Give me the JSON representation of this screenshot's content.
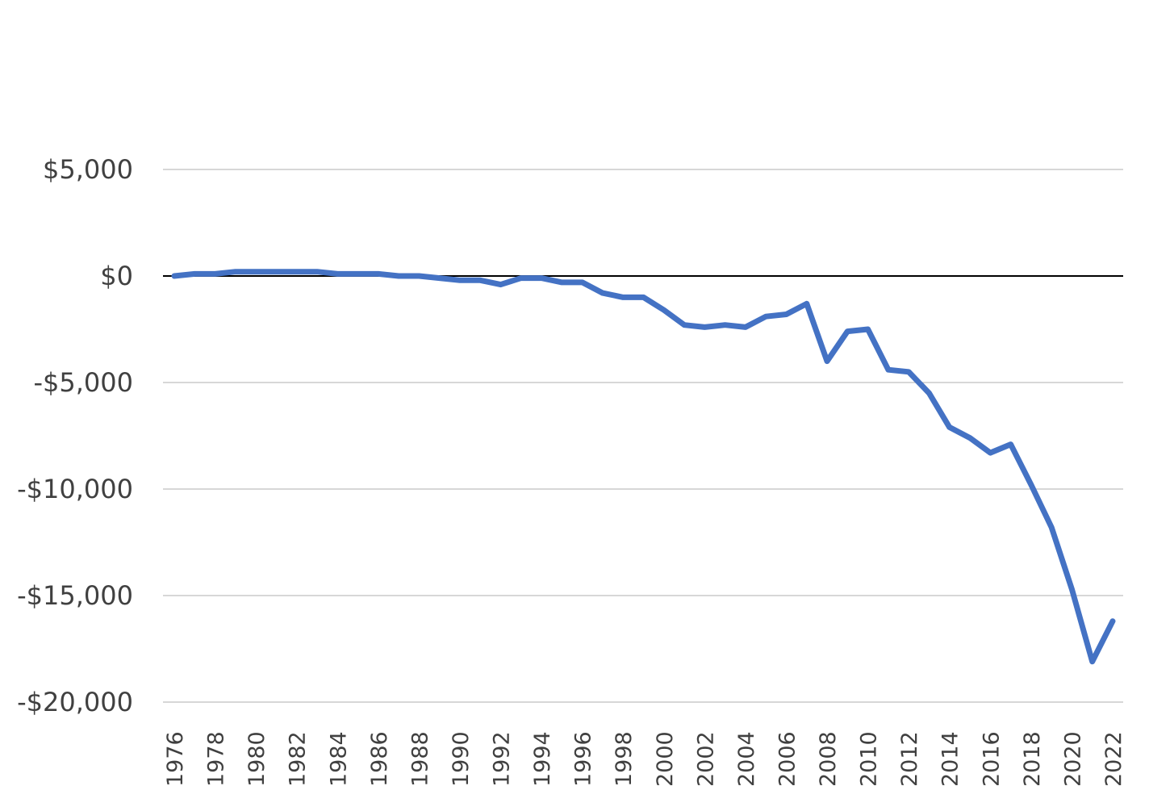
{
  "chart_data": {
    "type": "line",
    "title": "",
    "xlabel": "",
    "ylabel": "",
    "x": [
      1976,
      1977,
      1978,
      1979,
      1980,
      1981,
      1982,
      1983,
      1984,
      1985,
      1986,
      1987,
      1988,
      1989,
      1990,
      1991,
      1992,
      1993,
      1994,
      1995,
      1996,
      1997,
      1998,
      1999,
      2000,
      2001,
      2002,
      2003,
      2004,
      2005,
      2006,
      2007,
      2008,
      2009,
      2010,
      2011,
      2012,
      2013,
      2014,
      2015,
      2016,
      2017,
      2018,
      2019,
      2020,
      2021,
      2022
    ],
    "series": [
      {
        "values": [
          0,
          100,
          100,
          200,
          200,
          200,
          200,
          200,
          100,
          100,
          100,
          0,
          0,
          -100,
          -200,
          -200,
          -400,
          -100,
          -100,
          -300,
          -300,
          -800,
          -1000,
          -1000,
          -1600,
          -2300,
          -2400,
          -2300,
          -2400,
          -1900,
          -1800,
          -1300,
          -4000,
          -2600,
          -2500,
          -4400,
          -4500,
          -5500,
          -7100,
          -7600,
          -8300,
          -7900,
          -9800,
          -11800,
          -14700,
          -18100,
          -16200
        ],
        "color": "#4472C4"
      }
    ],
    "ylim": [
      -20000,
      5000
    ],
    "yticks": [
      5000,
      0,
      -5000,
      -10000,
      -15000,
      -20000
    ],
    "ytick_labels": [
      "$5,000",
      "$0",
      "-$5,000",
      "-$10,000",
      "-$15,000",
      "-$20,000"
    ],
    "xtick_labels": [
      "1976",
      "1978",
      "1980",
      "1982",
      "1984",
      "1986",
      "1988",
      "1990",
      "1992",
      "1994",
      "1996",
      "1998",
      "2000",
      "2002",
      "2004",
      "2006",
      "2008",
      "2010",
      "2012",
      "2014",
      "2016",
      "2018",
      "2020",
      "2022"
    ],
    "grid": true,
    "zero_line_color": "#000000",
    "grid_color": "#BFBFBF",
    "text_color": "#404040"
  }
}
